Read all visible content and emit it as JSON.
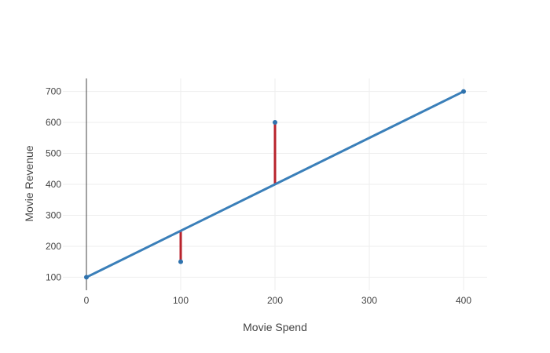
{
  "chart_data": {
    "type": "line",
    "title": "",
    "xlabel": "Movie Spend",
    "ylabel": "Movie Revenue",
    "xlim": [
      -25,
      425
    ],
    "ylim": [
      58,
      742
    ],
    "x_ticks": [
      0,
      100,
      200,
      300,
      400
    ],
    "y_ticks": [
      100,
      200,
      300,
      400,
      500,
      600,
      700
    ],
    "grid": true,
    "legend": "none",
    "series": [
      {
        "kind": "line",
        "color": "#3a7fb9",
        "points": [
          [
            0,
            100
          ],
          [
            400,
            700
          ]
        ]
      },
      {
        "kind": "markers",
        "color": "#2f72ad",
        "points": [
          [
            0,
            100
          ],
          [
            100,
            150
          ],
          [
            200,
            600
          ],
          [
            400,
            700
          ]
        ]
      },
      {
        "kind": "residuals",
        "color": "#b8232c",
        "segments": [
          [
            100,
            150,
            250
          ],
          [
            200,
            600,
            400
          ]
        ]
      }
    ]
  }
}
